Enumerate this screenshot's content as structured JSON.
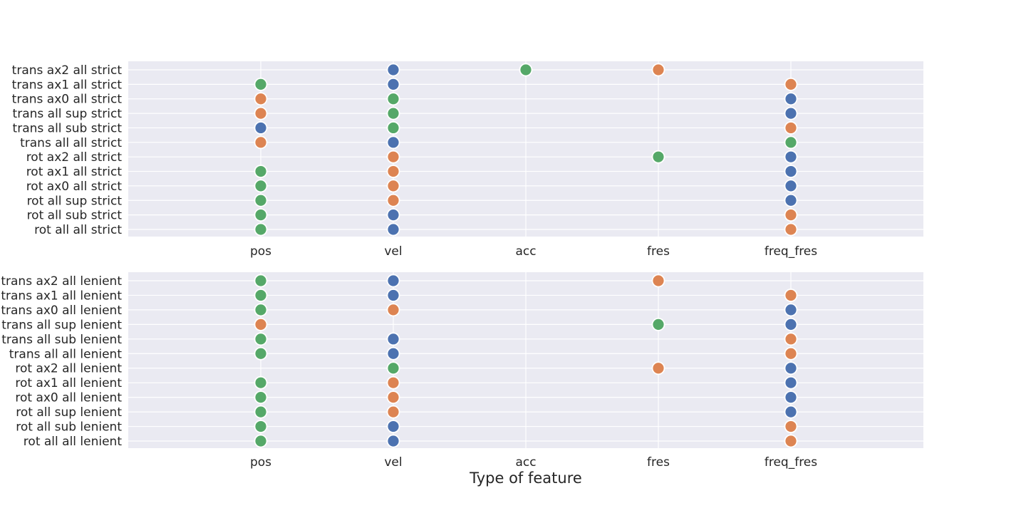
{
  "chart_data": [
    {
      "type": "scatter",
      "title": "",
      "xlabel": "",
      "categories": [
        "pos",
        "vel",
        "acc",
        "fres",
        "freq_fres"
      ],
      "rows": [
        "trans ax2 all strict",
        "trans ax1 all strict",
        "trans ax0 all strict",
        "trans all sup strict",
        "trans all sub strict",
        "trans all all strict",
        "rot ax2 all strict",
        "rot ax1 all strict",
        "rot ax0 all strict",
        "rot all sup strict",
        "rot all sub strict",
        "rot all all strict"
      ],
      "points": [
        [
          null,
          "blue",
          "green",
          "orange",
          null
        ],
        [
          "green",
          "blue",
          null,
          null,
          "orange"
        ],
        [
          "orange",
          "green",
          null,
          null,
          "blue"
        ],
        [
          "orange",
          "green",
          null,
          null,
          "blue"
        ],
        [
          "blue",
          "green",
          null,
          null,
          "orange"
        ],
        [
          "orange",
          "blue",
          null,
          null,
          "green"
        ],
        [
          null,
          "orange",
          null,
          "green",
          "blue"
        ],
        [
          "green",
          "orange",
          null,
          null,
          "blue"
        ],
        [
          "green",
          "orange",
          null,
          null,
          "blue"
        ],
        [
          "green",
          "orange",
          null,
          null,
          "blue"
        ],
        [
          "green",
          "blue",
          null,
          null,
          "orange"
        ],
        [
          "green",
          "blue",
          null,
          null,
          "orange"
        ]
      ]
    },
    {
      "type": "scatter",
      "title": "",
      "xlabel": "Type of feature",
      "categories": [
        "pos",
        "vel",
        "acc",
        "fres",
        "freq_fres"
      ],
      "rows": [
        "trans ax2 all lenient",
        "trans ax1 all lenient",
        "trans ax0 all lenient",
        "trans all sup lenient",
        "trans all sub lenient",
        "trans all all lenient",
        "rot ax2 all lenient",
        "rot ax1 all lenient",
        "rot ax0 all lenient",
        "rot all sup lenient",
        "rot all sub lenient",
        "rot all all lenient"
      ],
      "points": [
        [
          "green",
          "blue",
          null,
          "orange",
          null
        ],
        [
          "green",
          "blue",
          null,
          null,
          "orange"
        ],
        [
          "green",
          "orange",
          null,
          null,
          "blue"
        ],
        [
          "orange",
          null,
          null,
          "green",
          "blue"
        ],
        [
          "green",
          "blue",
          null,
          null,
          "orange"
        ],
        [
          "green",
          "blue",
          null,
          null,
          "orange"
        ],
        [
          null,
          "green",
          null,
          "orange",
          "blue"
        ],
        [
          "green",
          "orange",
          null,
          null,
          "blue"
        ],
        [
          "green",
          "orange",
          null,
          null,
          "blue"
        ],
        [
          "green",
          "orange",
          null,
          null,
          "blue"
        ],
        [
          "green",
          "blue",
          null,
          null,
          "orange"
        ],
        [
          "green",
          "blue",
          null,
          null,
          "orange"
        ]
      ]
    }
  ],
  "colors": {
    "blue": "#4c72b0",
    "orange": "#dd8452",
    "green": "#55a868",
    "panel": "#eaeaf2",
    "grid": "#ffffff",
    "text": "#262626"
  }
}
